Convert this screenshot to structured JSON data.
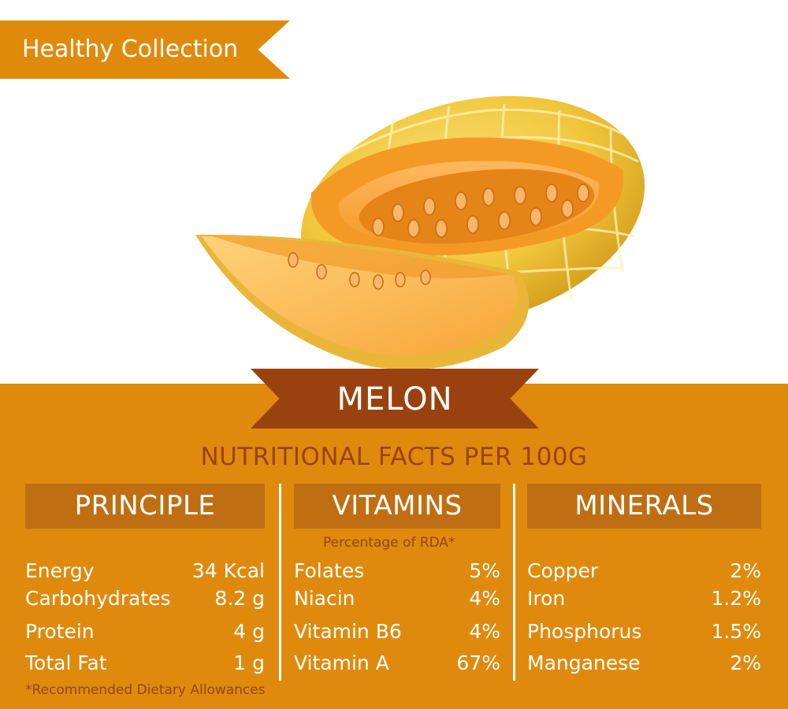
{
  "header": {
    "ribbon_label": "Healthy Collection"
  },
  "title": "MELON",
  "subtitle": "NUTRITIONAL FACTS PER 100G",
  "colors": {
    "ribbon": "#e08a0c",
    "panel": "#df8a0d",
    "column_header": "#c06e12",
    "title_banner": "#9a420f",
    "text_dark": "#9a420f"
  },
  "principle": {
    "heading": "PRINCIPLE",
    "rows": [
      {
        "label": "Energy",
        "value": "34 Kcal"
      },
      {
        "label": "Carbohydrates",
        "value": "8.2 g"
      },
      {
        "label": "Protein",
        "value": "4 g"
      },
      {
        "label": "Total Fat",
        "value": "1 g"
      }
    ]
  },
  "vitamins": {
    "heading": "VITAMINS",
    "note": "Percentage of RDA*",
    "rows": [
      {
        "label": "Folates",
        "value": "5%"
      },
      {
        "label": "Niacin",
        "value": "4%"
      },
      {
        "label": "Vitamin B6",
        "value": "4%"
      },
      {
        "label": "Vitamin A",
        "value": "67%"
      }
    ]
  },
  "minerals": {
    "heading": "MINERALS",
    "rows": [
      {
        "label": "Copper",
        "value": "2%"
      },
      {
        "label": "Iron",
        "value": "1.2%"
      },
      {
        "label": "Phosphorus",
        "value": "1.5%"
      },
      {
        "label": "Manganese",
        "value": "2%"
      }
    ]
  },
  "footnote": "*Recommended Dietary Allowances"
}
